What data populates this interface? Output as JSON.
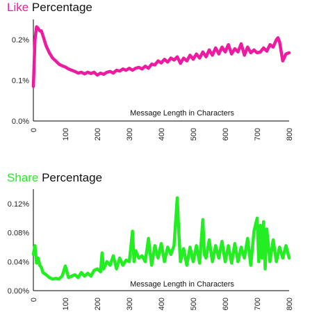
{
  "chart_data": [
    {
      "type": "line",
      "title_colored": "Like",
      "title_rest": " Percentage",
      "color": "#ee1aa0",
      "xlabel": "Message Length in Characters",
      "ylabel": "",
      "xlim": [
        0,
        800
      ],
      "ylim": [
        0,
        0.25
      ],
      "x_ticks": [
        "0",
        "100",
        "200",
        "300",
        "400",
        "500",
        "600",
        "700",
        "800"
      ],
      "y_ticks": [
        "0.0%",
        "0.1%",
        "0.2%"
      ],
      "grid": false,
      "series": [
        {
          "x": [
            0,
            5,
            10,
            15,
            20,
            25,
            30,
            40,
            50,
            60,
            70,
            80,
            90,
            100,
            110,
            120,
            130,
            140,
            150,
            160,
            170,
            180,
            190,
            200,
            210,
            220,
            230,
            240,
            250,
            260,
            270,
            280,
            290,
            300,
            310,
            320,
            330,
            340,
            350,
            360,
            370,
            380,
            390,
            400,
            410,
            420,
            430,
            440,
            450,
            460,
            470,
            480,
            490,
            500,
            510,
            520,
            530,
            540,
            550,
            560,
            570,
            580,
            590,
            600,
            610,
            620,
            630,
            640,
            650,
            660,
            670,
            680,
            690,
            700,
            710,
            720,
            730,
            740,
            750,
            760,
            765,
            770,
            780,
            790,
            800
          ],
          "values": [
            0.085,
            0.2,
            0.232,
            0.228,
            0.222,
            0.222,
            0.21,
            0.185,
            0.168,
            0.155,
            0.148,
            0.14,
            0.136,
            0.133,
            0.128,
            0.125,
            0.122,
            0.118,
            0.12,
            0.116,
            0.12,
            0.117,
            0.12,
            0.113,
            0.118,
            0.115,
            0.12,
            0.122,
            0.118,
            0.125,
            0.123,
            0.128,
            0.125,
            0.13,
            0.125,
            0.13,
            0.132,
            0.128,
            0.135,
            0.13,
            0.14,
            0.138,
            0.148,
            0.143,
            0.152,
            0.145,
            0.155,
            0.15,
            0.158,
            0.142,
            0.155,
            0.148,
            0.162,
            0.152,
            0.165,
            0.155,
            0.17,
            0.158,
            0.175,
            0.162,
            0.18,
            0.165,
            0.182,
            0.17,
            0.188,
            0.165,
            0.178,
            0.17,
            0.19,
            0.162,
            0.182,
            0.168,
            0.175,
            0.168,
            0.17,
            0.18,
            0.172,
            0.188,
            0.182,
            0.2,
            0.205,
            0.195,
            0.148,
            0.165,
            0.168
          ]
        }
      ]
    },
    {
      "type": "line",
      "title_colored": "Share",
      "title_rest": " Percentage",
      "color": "#22ee22",
      "xlabel": "Message Length in Characters",
      "ylabel": "",
      "xlim": [
        0,
        800
      ],
      "ylim": [
        0,
        0.14
      ],
      "x_ticks": [
        "0",
        "100",
        "200",
        "300",
        "400",
        "500",
        "600",
        "700",
        "800"
      ],
      "y_ticks": [
        "0.00%",
        "0.04%",
        "0.08%",
        "0.12%"
      ],
      "grid": false,
      "series": [
        {
          "x": [
            0,
            5,
            10,
            15,
            20,
            25,
            30,
            40,
            50,
            60,
            70,
            80,
            90,
            100,
            110,
            120,
            130,
            140,
            150,
            160,
            170,
            180,
            190,
            200,
            210,
            215,
            220,
            230,
            240,
            250,
            260,
            270,
            280,
            290,
            300,
            305,
            310,
            315,
            320,
            330,
            340,
            350,
            360,
            370,
            380,
            390,
            400,
            410,
            420,
            430,
            440,
            450,
            455,
            460,
            470,
            480,
            490,
            500,
            510,
            520,
            530,
            535,
            540,
            550,
            560,
            570,
            580,
            590,
            600,
            610,
            620,
            630,
            640,
            650,
            660,
            670,
            680,
            690,
            700,
            705,
            710,
            715,
            720,
            725,
            730,
            740,
            750,
            760,
            770,
            780,
            790,
            800
          ],
          "values": [
            0.05,
            0.062,
            0.038,
            0.045,
            0.035,
            0.032,
            0.025,
            0.022,
            0.018,
            0.016,
            0.017,
            0.016,
            0.02,
            0.034,
            0.018,
            0.02,
            0.022,
            0.018,
            0.025,
            0.02,
            0.024,
            0.02,
            0.028,
            0.03,
            0.026,
            0.052,
            0.03,
            0.04,
            0.035,
            0.048,
            0.03,
            0.045,
            0.035,
            0.042,
            0.04,
            0.06,
            0.082,
            0.04,
            0.055,
            0.045,
            0.048,
            0.04,
            0.072,
            0.035,
            0.062,
            0.045,
            0.065,
            0.04,
            0.06,
            0.05,
            0.062,
            0.128,
            0.08,
            0.04,
            0.058,
            0.035,
            0.06,
            0.04,
            0.062,
            0.038,
            0.098,
            0.05,
            0.045,
            0.07,
            0.04,
            0.062,
            0.045,
            0.068,
            0.04,
            0.062,
            0.038,
            0.065,
            0.04,
            0.06,
            0.045,
            0.072,
            0.035,
            0.082,
            0.1,
            0.04,
            0.09,
            0.045,
            0.095,
            0.03,
            0.085,
            0.04,
            0.07,
            0.04,
            0.06,
            0.045,
            0.062,
            0.045
          ]
        }
      ]
    }
  ]
}
